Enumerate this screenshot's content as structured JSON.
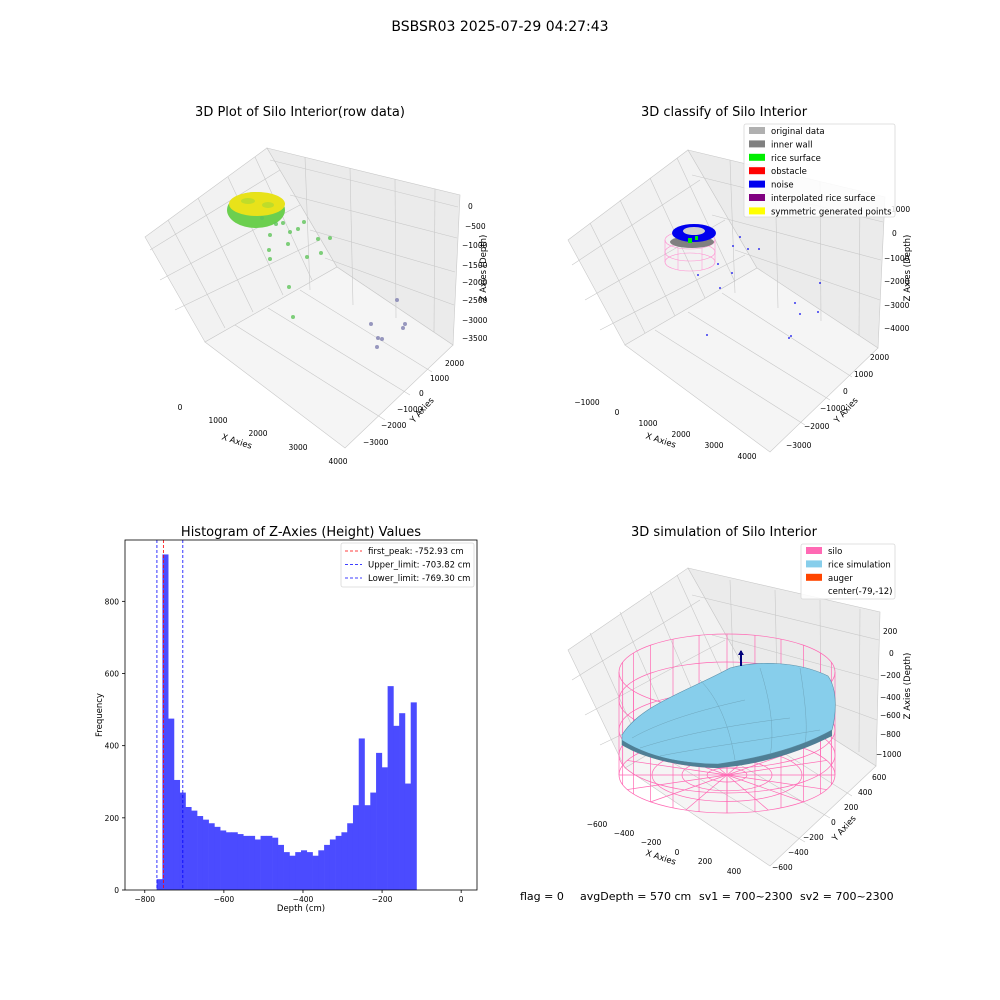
{
  "suptitle": "BSBSR03 2025-07-29 04:27:43",
  "panel1": {
    "title": "3D Plot of Silo Interior(row data)",
    "xlabel": "X Axies",
    "ylabel": "Y Axies",
    "zlabel": "Z Axies (Depth)",
    "xticks": [
      "0",
      "1000",
      "2000",
      "3000",
      "4000"
    ],
    "yticks": [
      "2000",
      "1000",
      "0",
      "−1000",
      "−2000",
      "−3000"
    ],
    "zticks": [
      "0",
      "−500",
      "−1000",
      "−1500",
      "−2000",
      "−2500",
      "−3000",
      "−3500"
    ],
    "colors": {
      "surface": "#e8e21a",
      "scatter": "#5fc45a",
      "far": "#7f7fb0"
    }
  },
  "panel2": {
    "title": "3D classify of Silo Interior",
    "xlabel": "X Axies",
    "ylabel": "Y Axies",
    "zlabel": "Z Axies (Depth)",
    "xticks": [
      "−1000",
      "0",
      "1000",
      "2000",
      "3000",
      "4000"
    ],
    "yticks": [
      "2000",
      "1000",
      "0",
      "−1000",
      "−2000",
      "−3000"
    ],
    "zticks": [
      "1000",
      "0",
      "−1000",
      "−2000",
      "−3000",
      "−4000"
    ],
    "legend": [
      {
        "label": "original data",
        "color": "#b0b0b0"
      },
      {
        "label": "inner wall",
        "color": "#808080"
      },
      {
        "label": "rice surface",
        "color": "#00ee00"
      },
      {
        "label": "obstacle",
        "color": "#ff0000"
      },
      {
        "label": "noise",
        "color": "#0000ee"
      },
      {
        "label": "interpolated rice surface",
        "color": "#800080"
      },
      {
        "label": "symmetric generated points",
        "color": "#ffff00"
      }
    ]
  },
  "chart_data": {
    "type": "bar",
    "title": "Histogram of Z-Axies (Height) Values",
    "xlabel": "Depth (cm)",
    "ylabel": "Frequency",
    "xlim": [
      -850,
      40
    ],
    "ylim": [
      0,
      970
    ],
    "grid": false,
    "legend_position": "top-right",
    "xticks": [
      -800,
      -600,
      -400,
      -200,
      0
    ],
    "yticks": [
      0,
      200,
      400,
      600,
      800
    ],
    "bin_start": -770,
    "bin_width": 14.6,
    "values": [
      30,
      930,
      475,
      305,
      270,
      230,
      220,
      205,
      195,
      185,
      175,
      165,
      160,
      160,
      155,
      150,
      150,
      140,
      150,
      150,
      145,
      125,
      105,
      95,
      105,
      110,
      105,
      95,
      110,
      125,
      140,
      150,
      160,
      185,
      235,
      420,
      235,
      270,
      380,
      340,
      565,
      455,
      490,
      295,
      520
    ],
    "vlines": [
      {
        "label": "first_peak: -752.93 cm",
        "x": -752.93,
        "color": "#ff0000"
      },
      {
        "label": "Upper_limit: -703.82 cm",
        "x": -703.82,
        "color": "#0000ff"
      },
      {
        "label": "Lower_limit: -769.30 cm",
        "x": -769.3,
        "color": "#0000ff"
      }
    ],
    "bar_color": "#4b4bff"
  },
  "panel4": {
    "title": "3D simulation of Silo Interior",
    "xlabel": "X Axies",
    "ylabel": "Y Axies",
    "zlabel": "Z Axies (Depth)",
    "xticks": [
      "−600",
      "−400",
      "−200",
      "0",
      "200",
      "400"
    ],
    "yticks": [
      "600",
      "400",
      "200",
      "0",
      "−200",
      "−400",
      "−600"
    ],
    "zticks": [
      "200",
      "0",
      "−200",
      "−400",
      "−600",
      "−800",
      "−1000"
    ],
    "legend": [
      {
        "label": "silo",
        "color": "#ff69b4"
      },
      {
        "label": "rice simulation",
        "color": "#87ceeb"
      },
      {
        "label": "auger",
        "color": "#ff4500"
      },
      {
        "label": "center(-79,-12)",
        "color": ""
      }
    ]
  },
  "footer": {
    "flag": "flag = 0",
    "avgdepth": "avgDepth = 570 cm",
    "sv1": "sv1 = 700~2300",
    "sv2": "sv2 = 700~2300"
  }
}
